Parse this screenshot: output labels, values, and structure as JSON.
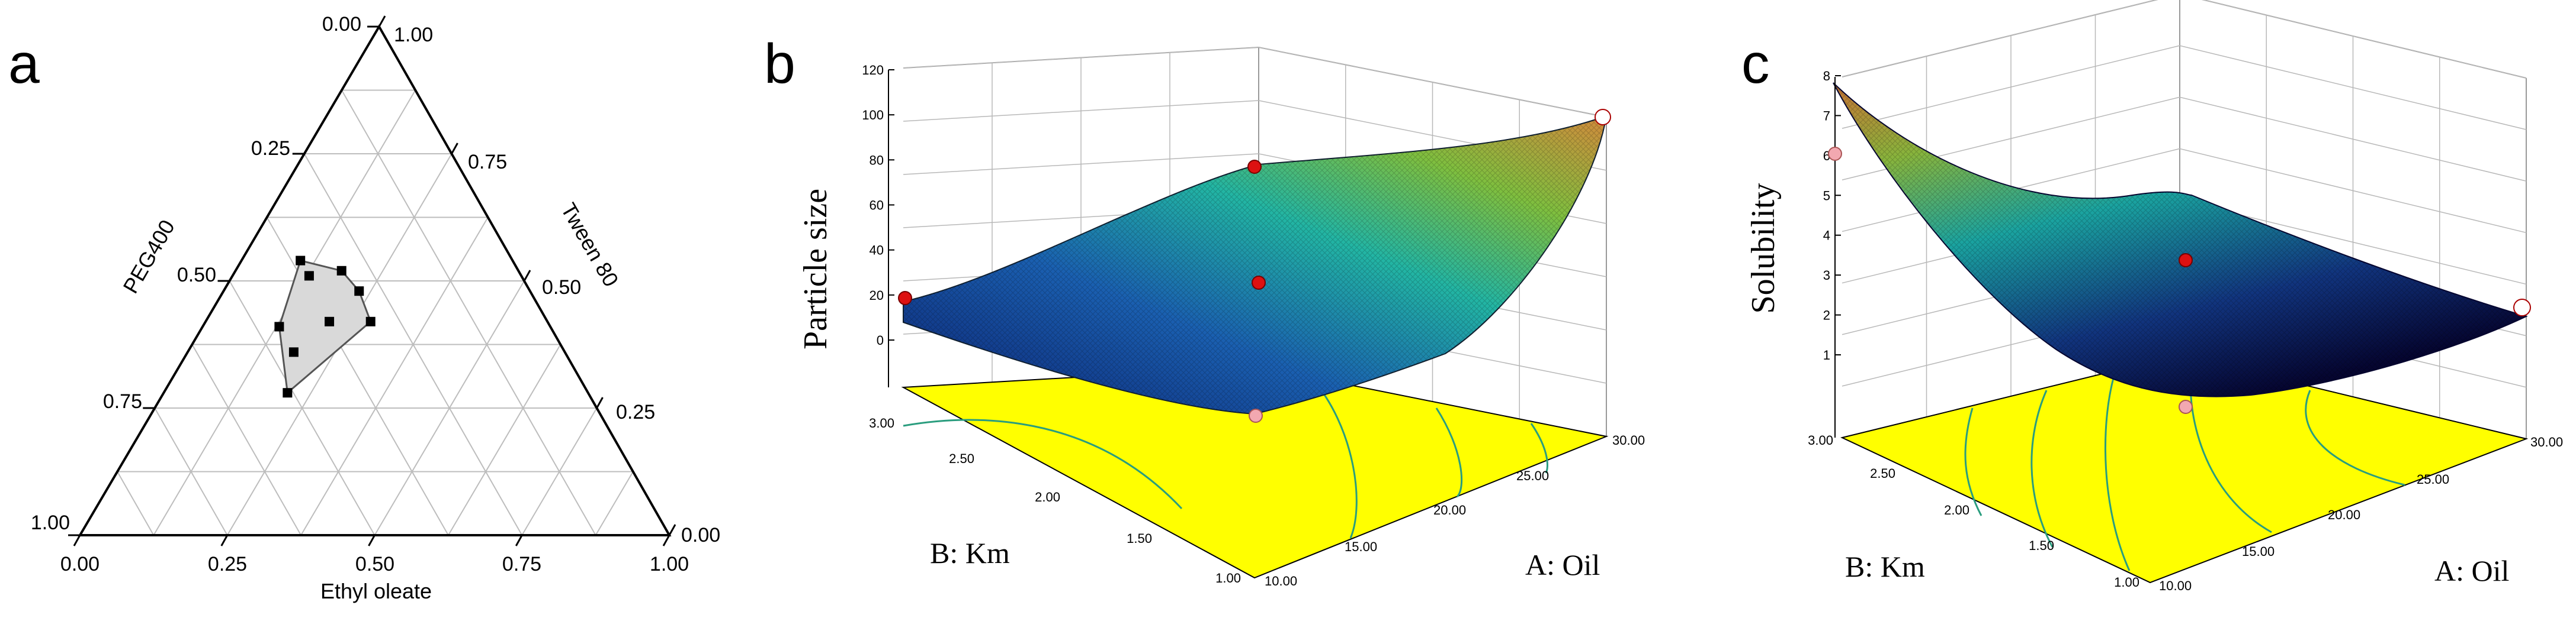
{
  "panels": [
    {
      "letter": "a"
    },
    {
      "letter": "b"
    },
    {
      "letter": "c"
    }
  ],
  "chart_data": [
    {
      "type": "ternary",
      "axes": {
        "bottom": {
          "label": "Ethyl oleate",
          "ticks": [
            "0.00",
            "0.25",
            "0.50",
            "0.75",
            "1.00"
          ]
        },
        "left": {
          "label": "PEG400",
          "ticks": [
            "0.00",
            "0.25",
            "0.50",
            "0.75",
            "1.00"
          ]
        },
        "right": {
          "label": "Tween 80",
          "ticks": [
            "1.00",
            "0.75",
            "0.50",
            "0.25",
            "0.00"
          ]
        }
      },
      "points": [
        {
          "ethyl_oleate": 0.1,
          "peg400": 0.36,
          "tween80": 0.54
        },
        {
          "ethyl_oleate": 0.13,
          "peg400": 0.36,
          "tween80": 0.51
        },
        {
          "ethyl_oleate": 0.13,
          "peg400": 0.46,
          "tween80": 0.41
        },
        {
          "ethyl_oleate": 0.18,
          "peg400": 0.46,
          "tween80": 0.36
        },
        {
          "ethyl_oleate": 0.18,
          "peg400": 0.3,
          "tween80": 0.52
        },
        {
          "ethyl_oleate": 0.21,
          "peg400": 0.37,
          "tween80": 0.42
        },
        {
          "ethyl_oleate": 0.23,
          "peg400": 0.29,
          "tween80": 0.48
        },
        {
          "ethyl_oleate": 0.28,
          "peg400": 0.3,
          "tween80": 0.42
        },
        {
          "ethyl_oleate": 0.21,
          "peg400": 0.51,
          "tween80": 0.28
        }
      ],
      "region": "shaded polygon bounded by the points"
    },
    {
      "type": "surface3d",
      "zlabel": "Particle size",
      "zticks": [
        "0",
        "20",
        "40",
        "60",
        "80",
        "100",
        "120"
      ],
      "zlim": [
        0,
        120
      ],
      "x": {
        "label": "A: Oil",
        "ticks": [
          "10.00",
          "15.00",
          "20.00",
          "25.00",
          "30.00"
        ],
        "range": [
          10,
          30
        ]
      },
      "y": {
        "label": "B: Km",
        "ticks": [
          "1.00",
          "1.50",
          "2.00",
          "2.50",
          "3.00"
        ],
        "range": [
          1,
          3
        ]
      },
      "surface": "quadratic response surface; particle size increases with oil content",
      "design_points": [
        {
          "oil": 10,
          "km": 3,
          "value": 20
        },
        {
          "oil": 10,
          "km": 1,
          "value": 26
        },
        {
          "oil": 20,
          "km": 2,
          "value": 48
        },
        {
          "oil": 30,
          "km": 3,
          "value": 104
        },
        {
          "oil": 20,
          "km": 3,
          "value": 82
        }
      ],
      "floor_contours": "yes",
      "floor_color": "#FFFF00"
    },
    {
      "type": "surface3d",
      "zlabel": "Solubility",
      "zticks": [
        "1",
        "2",
        "3",
        "4",
        "5",
        "6",
        "7",
        "8"
      ],
      "zlim": [
        1,
        8
      ],
      "x": {
        "label": "A: Oil",
        "ticks": [
          "10.00",
          "15.00",
          "20.00",
          "25.00",
          "30.00"
        ],
        "range": [
          10,
          30
        ]
      },
      "y": {
        "label": "B: Km",
        "ticks": [
          "1.00",
          "1.50",
          "2.00",
          "2.50",
          "3.00"
        ],
        "range": [
          1,
          3
        ]
      },
      "surface": "quadratic response surface; solubility highest at low oil / high Km",
      "design_points": [
        {
          "oil": 10,
          "km": 3,
          "value": 6
        },
        {
          "oil": 20,
          "km": 2,
          "value": 3.5
        },
        {
          "oil": 30,
          "km": 1,
          "value": 1.8
        },
        {
          "oil": 20,
          "km": 1,
          "value": 1.3
        }
      ],
      "floor_contours": "yes",
      "floor_color": "#FFFF00"
    }
  ],
  "colors": {
    "floor": "#FFFF00",
    "contour": "#2a9d7e",
    "grid": "#b8b8b8",
    "shade": "#d9d9d9",
    "marker_red": "#dd1111",
    "marker_pink": "#f2a8b0",
    "surface_low": "#0a0a5e",
    "surface_mid": "#1fb3a8",
    "surface_high": "#c98a3a"
  }
}
